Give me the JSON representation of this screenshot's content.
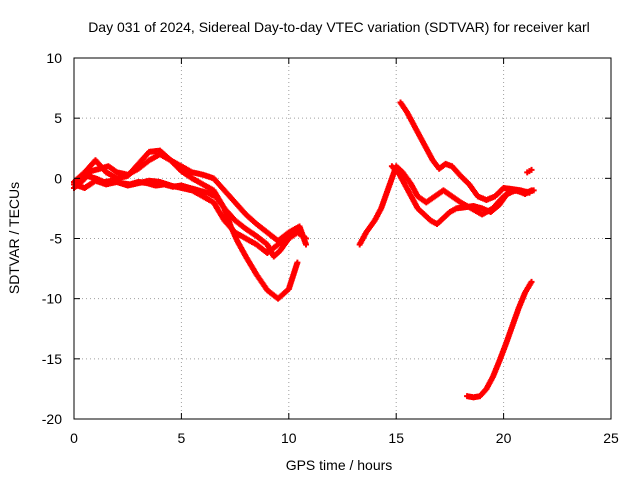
{
  "chart_data": {
    "type": "scatter",
    "title": "Day 031 of 2024, Sidereal Day-to-day VTEC variation (SDTVAR) for receiver karl",
    "xlabel": "GPS time / hours",
    "ylabel": "SDTVAR / TECUs",
    "xlim": [
      0,
      25
    ],
    "ylim": [
      -20,
      10
    ],
    "xticks": [
      0,
      5,
      10,
      15,
      20,
      25
    ],
    "yticks": [
      -20,
      -15,
      -10,
      -5,
      0,
      5,
      10
    ],
    "xtick_labels": [
      "0",
      "5",
      "10",
      "15",
      "20",
      "25"
    ],
    "ytick_labels": [
      "-20",
      "-15",
      "-10",
      "-5",
      "0",
      "5",
      "10"
    ],
    "grid": true,
    "marker": "plus",
    "series_color": "#ff0000",
    "series": [
      {
        "name": "track-1",
        "x": [
          0.0,
          0.3,
          0.6,
          1.0,
          1.4,
          1.8,
          2.2,
          2.6,
          3.0,
          3.4,
          3.8,
          4.2,
          4.6,
          5.0,
          5.4,
          5.8,
          6.2,
          6.6,
          7.0,
          7.5,
          8.0,
          8.5,
          9.0,
          9.3,
          9.6,
          10.0,
          10.4,
          10.8
        ],
        "y": [
          -0.5,
          -0.3,
          0.2,
          0.0,
          -0.3,
          -0.2,
          -0.4,
          -0.5,
          -0.3,
          -0.4,
          -0.6,
          -0.5,
          -0.7,
          -0.6,
          -0.8,
          -1.0,
          -1.2,
          -1.5,
          -2.5,
          -3.5,
          -4.2,
          -4.8,
          -5.5,
          -6.5,
          -6.0,
          -5.0,
          -4.5,
          -5.0
        ]
      },
      {
        "name": "track-2",
        "x": [
          0.0,
          0.4,
          0.8,
          1.2,
          1.6,
          2.0,
          2.5,
          3.0,
          3.5,
          4.0,
          4.5,
          5.0,
          5.5,
          6.0,
          6.5,
          7.0,
          7.5,
          8.0,
          8.5,
          9.0,
          9.5,
          10.0,
          10.5,
          10.8
        ],
        "y": [
          -0.8,
          -0.2,
          0.6,
          0.8,
          1.0,
          0.5,
          0.3,
          0.8,
          1.5,
          2.0,
          1.5,
          1.0,
          0.5,
          0.3,
          0.0,
          -1.0,
          -2.0,
          -3.0,
          -3.8,
          -4.5,
          -5.2,
          -4.5,
          -4.0,
          -5.5
        ]
      },
      {
        "name": "track-3",
        "x": [
          0.0,
          0.5,
          1.0,
          1.5,
          2.0,
          2.5,
          3.0,
          3.5,
          4.0,
          4.5,
          5.0,
          5.5,
          6.0,
          6.5,
          7.0,
          7.3,
          7.6,
          8.0,
          8.5,
          9.0,
          9.5,
          10.0,
          10.4
        ],
        "y": [
          -0.3,
          0.5,
          1.5,
          0.5,
          0.0,
          0.2,
          1.2,
          2.2,
          2.3,
          1.5,
          0.6,
          0.0,
          -0.5,
          -1.0,
          -2.5,
          -4.0,
          -5.2,
          -6.5,
          -8.0,
          -9.3,
          -10.0,
          -9.2,
          -7.0
        ]
      },
      {
        "name": "track-4",
        "x": [
          0.0,
          0.5,
          1.0,
          1.5,
          2.0,
          2.5,
          3.0,
          3.5,
          4.0,
          4.5,
          5.0,
          5.5,
          6.0,
          6.5,
          7.0,
          7.5,
          8.0,
          8.5,
          9.0,
          9.5,
          10.0
        ],
        "y": [
          -0.5,
          -0.8,
          -0.2,
          -0.5,
          -0.3,
          -0.6,
          -0.4,
          -0.2,
          -0.3,
          -0.6,
          -0.8,
          -1.0,
          -1.5,
          -2.0,
          -3.5,
          -4.5,
          -5.0,
          -5.5,
          -6.2,
          -5.5,
          -4.8
        ]
      },
      {
        "name": "track-5",
        "x": [
          13.3,
          13.6,
          14.0,
          14.3,
          14.6,
          15.0,
          15.3,
          15.7,
          16.0,
          16.4,
          16.8,
          17.2,
          17.6,
          18.0,
          18.5,
          19.0,
          19.5,
          20.0,
          20.5,
          21.0,
          21.4
        ],
        "y": [
          -5.5,
          -4.5,
          -3.5,
          -2.5,
          -1.0,
          1.0,
          0.5,
          -0.5,
          -1.5,
          -2.0,
          -1.5,
          -1.0,
          -1.5,
          -2.0,
          -2.5,
          -3.0,
          -2.5,
          -1.5,
          -1.0,
          -1.2,
          -1.0
        ]
      },
      {
        "name": "track-6",
        "x": [
          15.2,
          15.5,
          15.8,
          16.1,
          16.4,
          16.7,
          17.0,
          17.3,
          17.6,
          18.0,
          18.4,
          18.8,
          19.2,
          19.6,
          20.0,
          20.4,
          20.8,
          21.2
        ],
        "y": [
          6.3,
          5.5,
          4.5,
          3.5,
          2.5,
          1.5,
          0.8,
          1.2,
          1.0,
          0.2,
          -0.5,
          -1.5,
          -1.8,
          -1.5,
          -0.8,
          -0.9,
          -1.0,
          -1.2
        ]
      },
      {
        "name": "track-7",
        "x": [
          14.8,
          15.1,
          15.4,
          15.7,
          16.0,
          16.3,
          16.6,
          16.9,
          17.2,
          17.5,
          17.8,
          18.2,
          18.6,
          19.0,
          19.4,
          19.8,
          20.2,
          20.6,
          21.0,
          21.3
        ],
        "y": [
          1.0,
          0.5,
          -0.5,
          -1.5,
          -2.5,
          -3.0,
          -3.5,
          -3.8,
          -3.3,
          -2.8,
          -2.5,
          -2.4,
          -2.3,
          -2.5,
          -2.8,
          -2.2,
          -1.2,
          -1.0,
          -1.3,
          -1.0
        ]
      },
      {
        "name": "track-8",
        "x": [
          21.1,
          21.2,
          21.3
        ],
        "y": [
          0.5,
          0.6,
          0.7
        ]
      },
      {
        "name": "track-9",
        "x": [
          18.3,
          18.6,
          18.9,
          19.2,
          19.5,
          19.8,
          20.1,
          20.4,
          20.7,
          21.0,
          21.3
        ],
        "y": [
          -18.1,
          -18.2,
          -18.1,
          -17.5,
          -16.5,
          -15.2,
          -13.8,
          -12.3,
          -10.8,
          -9.5,
          -8.6
        ]
      }
    ]
  }
}
